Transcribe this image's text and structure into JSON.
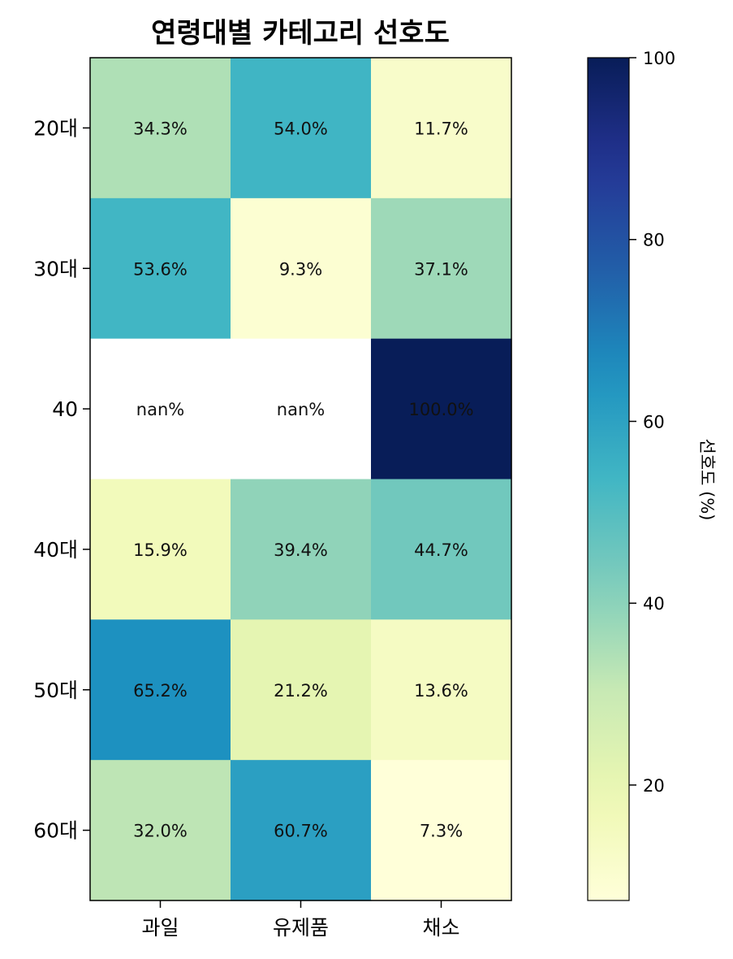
{
  "chart_data": {
    "type": "heatmap",
    "title": "연령대별 카테고리 선호도",
    "rows": [
      "20대",
      "30대",
      "40",
      "40대",
      "50대",
      "60대"
    ],
    "columns": [
      "과일",
      "유제품",
      "채소"
    ],
    "values": [
      [
        34.3,
        54.0,
        11.7
      ],
      [
        53.6,
        9.3,
        37.1
      ],
      [
        null,
        null,
        100.0
      ],
      [
        15.9,
        39.4,
        44.7
      ],
      [
        65.2,
        21.2,
        13.6
      ],
      [
        32.0,
        60.7,
        7.3
      ]
    ],
    "cell_labels": [
      [
        "34.3%",
        "54.0%",
        "11.7%"
      ],
      [
        "53.6%",
        "9.3%",
        "37.1%"
      ],
      [
        "nan%",
        "nan%",
        "100.0%"
      ],
      [
        "15.9%",
        "39.4%",
        "44.7%"
      ],
      [
        "65.2%",
        "21.2%",
        "13.6%"
      ],
      [
        "32.0%",
        "60.7%",
        "7.3%"
      ]
    ],
    "colormap": "YlGnBu",
    "missing_color": "#ffffff",
    "colorbar": {
      "label": "선호도 (%)",
      "range": [
        7.3,
        100
      ],
      "ticks": [
        20,
        40,
        60,
        80,
        100
      ],
      "tick_labels": [
        "20",
        "40",
        "60",
        "80",
        "100"
      ],
      "placement": "right"
    }
  }
}
